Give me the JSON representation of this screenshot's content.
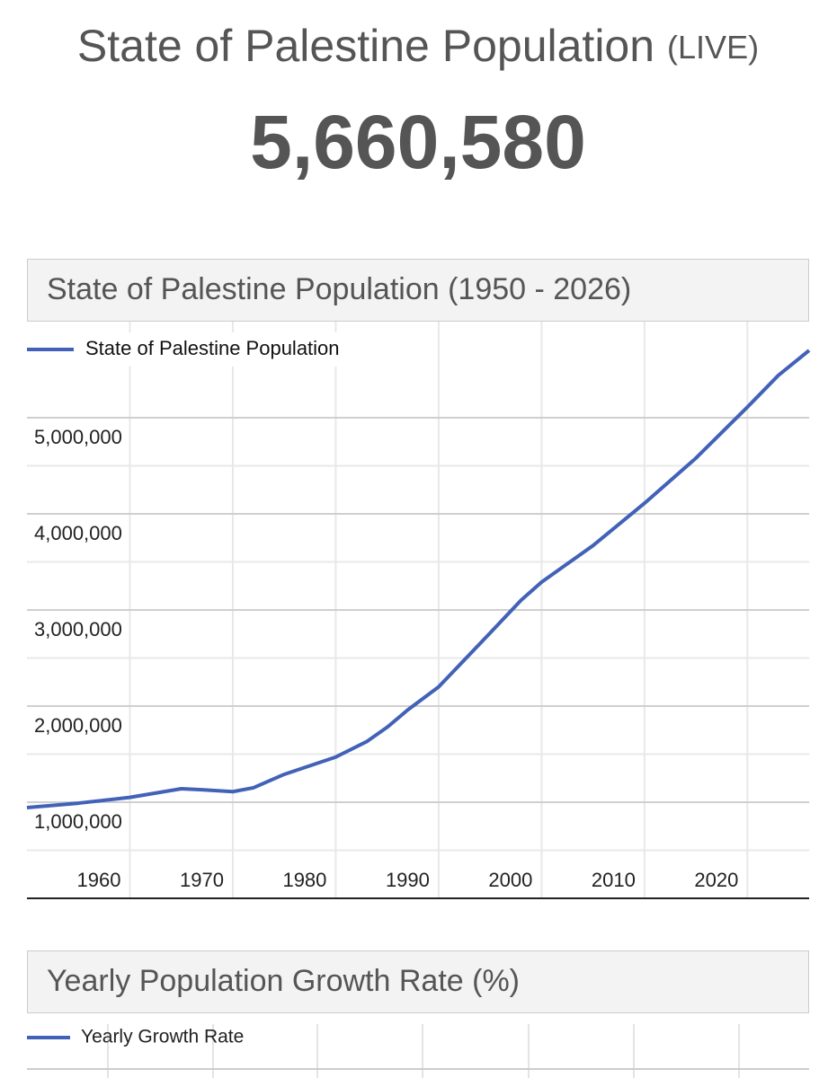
{
  "header": {
    "title": "State of Palestine Population",
    "badge": "(LIVE)",
    "counter": "5,660,580"
  },
  "chart_data": [
    {
      "type": "line",
      "title": "State of Palestine Population (1950 - 2026)",
      "x": [
        1950,
        1955,
        1960,
        1965,
        1967,
        1970,
        1972,
        1975,
        1980,
        1983,
        1985,
        1987,
        1990,
        1995,
        1998,
        2000,
        2005,
        2010,
        2015,
        2020,
        2023,
        2026
      ],
      "series": [
        {
          "name": "State of Palestine Population",
          "color": "#4262b8",
          "values": [
            944000,
            990000,
            1050000,
            1140000,
            1130000,
            1110000,
            1150000,
            1290000,
            1470000,
            1630000,
            1780000,
            1960000,
            2200000,
            2760000,
            3100000,
            3290000,
            3670000,
            4110000,
            4580000,
            5110000,
            5440000,
            5700000
          ]
        }
      ],
      "xlim": [
        1950,
        2026
      ],
      "xticks": [
        1960,
        1970,
        1980,
        1990,
        2000,
        2010,
        2020
      ],
      "ylim": [
        0,
        6000000
      ],
      "yticks": [
        {
          "value": 1000000,
          "label": "1,000,000"
        },
        {
          "value": 2000000,
          "label": "2,000,000"
        },
        {
          "value": 3000000,
          "label": "3,000,000"
        },
        {
          "value": 4000000,
          "label": "4,000,000"
        },
        {
          "value": 5000000,
          "label": "5,000,000"
        }
      ],
      "grid": true
    },
    {
      "type": "line",
      "title": "Yearly Population Growth Rate (%)",
      "series": [
        {
          "name": "Yearly Growth Rate",
          "color": "#4262b8"
        }
      ]
    }
  ]
}
